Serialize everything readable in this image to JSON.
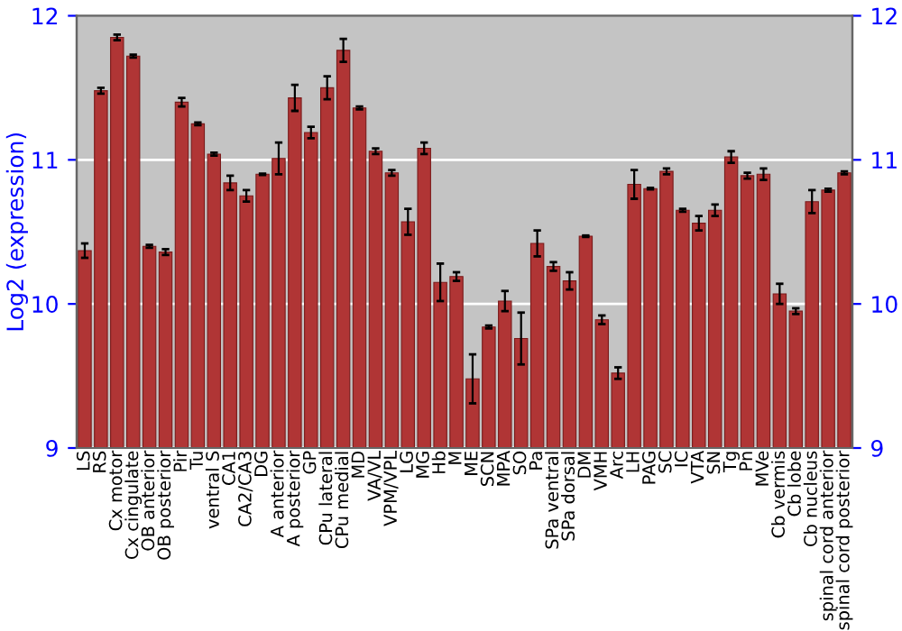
{
  "chart_data": {
    "type": "bar",
    "ylabel": "Log2 (expression)",
    "categories": [
      "LS",
      "RS",
      "Cx motor",
      "Cx cingulate",
      "OB anterior",
      "OB posterior",
      "Pir",
      "Tu",
      "ventral S",
      "CA1",
      "CA2/CA3",
      "DG",
      "A anterior",
      "A posterior",
      "GP",
      "CPu lateral",
      "CPu medial",
      "MD",
      "VA/VL",
      "VPM/VPL",
      "LG",
      "MG",
      "Hb",
      "M",
      "ME",
      "SCN",
      "MPA",
      "SO",
      "Pa",
      "SPa ventral",
      "SPa dorsal",
      "DM",
      "VMH",
      "Arc",
      "LH",
      "PAG",
      "SC",
      "IC",
      "VTA",
      "SN",
      "Tg",
      "Pn",
      "MVe",
      "Cb vermis",
      "Cb lobe",
      "Cb nucleus",
      "spinal cord anterior",
      "spinal cord posterior"
    ],
    "values": [
      10.37,
      11.48,
      11.85,
      11.72,
      10.4,
      10.36,
      11.4,
      11.25,
      11.04,
      10.84,
      10.75,
      10.9,
      11.01,
      11.43,
      11.19,
      11.5,
      11.76,
      11.36,
      11.06,
      10.91,
      10.57,
      11.08,
      10.15,
      10.19,
      9.48,
      9.84,
      10.02,
      9.76,
      10.42,
      10.26,
      10.16,
      10.47,
      9.89,
      9.52,
      10.83,
      10.8,
      10.92,
      10.65,
      10.56,
      10.65,
      11.02,
      10.89,
      10.9,
      10.07,
      9.95,
      10.71,
      10.79,
      10.91
    ],
    "errors": [
      0.05,
      0.02,
      0.02,
      0.01,
      0.01,
      0.02,
      0.03,
      0.01,
      0.01,
      0.05,
      0.04,
      0.005,
      0.11,
      0.09,
      0.04,
      0.08,
      0.08,
      0.01,
      0.02,
      0.02,
      0.09,
      0.04,
      0.13,
      0.03,
      0.17,
      0.01,
      0.07,
      0.18,
      0.09,
      0.03,
      0.06,
      0.005,
      0.03,
      0.04,
      0.1,
      0.005,
      0.02,
      0.01,
      0.05,
      0.04,
      0.04,
      0.02,
      0.04,
      0.07,
      0.02,
      0.08,
      0.01,
      0.01
    ],
    "color": "#b03535",
    "ylim": [
      9,
      12
    ],
    "yticks": [
      9,
      10,
      11,
      12
    ],
    "y2lim": [
      9,
      12
    ],
    "y2ticks": [
      9,
      10,
      11,
      12
    ],
    "grid": "y"
  }
}
